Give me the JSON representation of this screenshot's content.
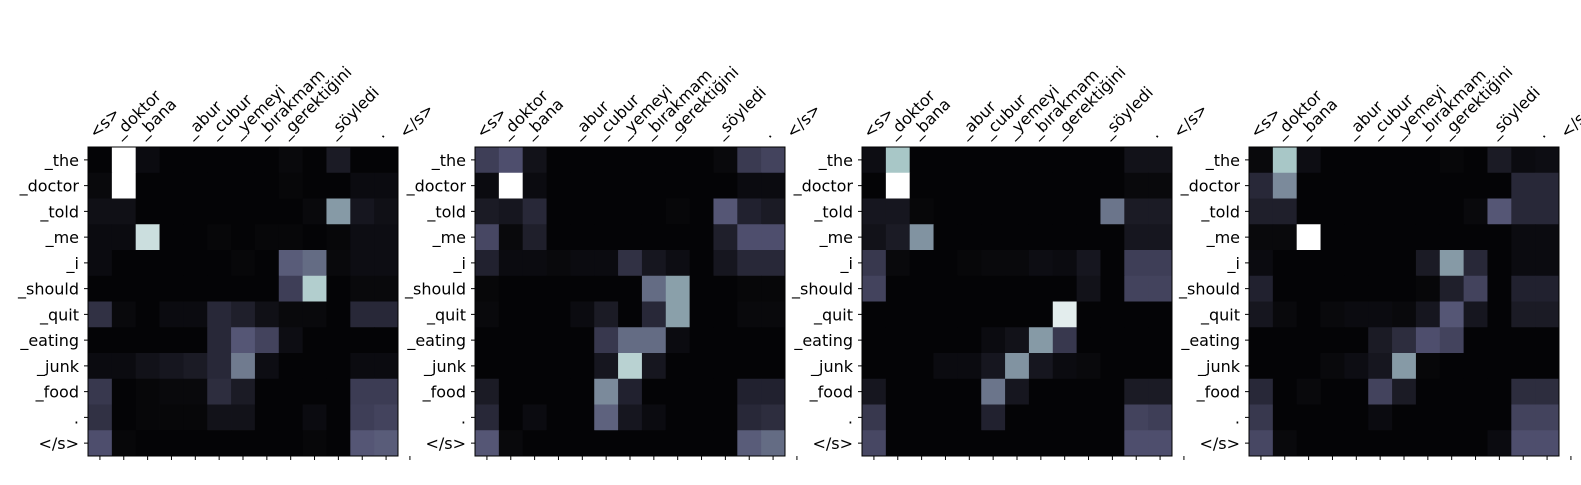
{
  "chart_data": [
    {
      "type": "heatmap",
      "colormap": "bone",
      "x_labels": [
        "<s>",
        "_doktor",
        "_bana",
        "_abur",
        "_cubur",
        "_yemeyi",
        "_bırakmam",
        "_gerektiğini",
        "_söyledi",
        ".",
        "</s>"
      ],
      "x_tokens": [
        "<s>",
        "_doktor",
        "_bana",
        "",
        "_abur",
        "_cubur",
        "_yemeyi",
        "_bırakmam",
        "_gerektiğini",
        "",
        "_söyledi",
        "",
        ".",
        "</s>"
      ],
      "y_labels": [
        "_the",
        "_doctor",
        "_told",
        "_me",
        "_i",
        "_should",
        "_quit",
        "_eating",
        "_junk",
        "_food",
        ".",
        "</s>"
      ],
      "values": [
        [
          0.02,
          1.0,
          0.05,
          0.02,
          0.02,
          0.02,
          0.02,
          0.02,
          0.04,
          0.02,
          0.12,
          0.02,
          0.02
        ],
        [
          0.04,
          1.0,
          0.02,
          0.02,
          0.02,
          0.02,
          0.02,
          0.02,
          0.03,
          0.02,
          0.02,
          0.05,
          0.05
        ],
        [
          0.07,
          0.07,
          0.02,
          0.02,
          0.02,
          0.02,
          0.02,
          0.02,
          0.02,
          0.04,
          0.6,
          0.1,
          0.07
        ],
        [
          0.05,
          0.05,
          0.85,
          0.02,
          0.02,
          0.03,
          0.02,
          0.03,
          0.03,
          0.02,
          0.03,
          0.06,
          0.06
        ],
        [
          0.05,
          0.02,
          0.02,
          0.02,
          0.02,
          0.02,
          0.03,
          0.02,
          0.4,
          0.45,
          0.04,
          0.06,
          0.06
        ],
        [
          0.02,
          0.02,
          0.02,
          0.02,
          0.02,
          0.02,
          0.02,
          0.02,
          0.28,
          0.78,
          0.02,
          0.04,
          0.04
        ],
        [
          0.22,
          0.04,
          0.02,
          0.05,
          0.05,
          0.18,
          0.14,
          0.07,
          0.04,
          0.04,
          0.02,
          0.18,
          0.18
        ],
        [
          0.02,
          0.02,
          0.02,
          0.02,
          0.02,
          0.18,
          0.38,
          0.3,
          0.06,
          0.02,
          0.02,
          0.02,
          0.02
        ],
        [
          0.05,
          0.05,
          0.08,
          0.1,
          0.12,
          0.18,
          0.5,
          0.06,
          0.02,
          0.02,
          0.02,
          0.05,
          0.05
        ],
        [
          0.25,
          0.02,
          0.03,
          0.04,
          0.04,
          0.2,
          0.12,
          0.02,
          0.02,
          0.02,
          0.02,
          0.27,
          0.27
        ],
        [
          0.22,
          0.02,
          0.03,
          0.03,
          0.03,
          0.08,
          0.08,
          0.02,
          0.02,
          0.05,
          0.02,
          0.28,
          0.3
        ],
        [
          0.35,
          0.03,
          0.02,
          0.02,
          0.02,
          0.02,
          0.02,
          0.02,
          0.02,
          0.03,
          0.02,
          0.38,
          0.4
        ]
      ]
    },
    {
      "type": "heatmap",
      "colormap": "bone",
      "x_labels": [
        "<s>",
        "_doktor",
        "_bana",
        "_abur",
        "_cubur",
        "_yemeyi",
        "_bırakmam",
        "_gerektiğini",
        "_söyledi",
        ".",
        "</s>"
      ],
      "x_tokens": [
        "<s>",
        "_doktor",
        "_bana",
        "",
        "_abur",
        "_cubur",
        "_yemeyi",
        "_bırakmam",
        "_gerektiğini",
        "",
        "_söyledi",
        "",
        ".",
        "</s>"
      ],
      "y_labels": [
        "_the",
        "_doctor",
        "_told",
        "_me",
        "_i",
        "_should",
        "_quit",
        "_eating",
        "_junk",
        "_food",
        ".",
        "</s>"
      ],
      "values": [
        [
          0.28,
          0.35,
          0.08,
          0.02,
          0.02,
          0.02,
          0.02,
          0.02,
          0.02,
          0.02,
          0.04,
          0.26,
          0.3
        ],
        [
          0.05,
          1.0,
          0.05,
          0.02,
          0.02,
          0.02,
          0.02,
          0.02,
          0.02,
          0.02,
          0.02,
          0.05,
          0.05
        ],
        [
          0.12,
          0.1,
          0.18,
          0.02,
          0.02,
          0.02,
          0.02,
          0.02,
          0.03,
          0.02,
          0.38,
          0.15,
          0.12
        ],
        [
          0.32,
          0.04,
          0.14,
          0.02,
          0.02,
          0.02,
          0.02,
          0.02,
          0.02,
          0.02,
          0.14,
          0.35,
          0.35
        ],
        [
          0.15,
          0.05,
          0.05,
          0.04,
          0.05,
          0.05,
          0.22,
          0.1,
          0.06,
          0.02,
          0.1,
          0.18,
          0.18
        ],
        [
          0.03,
          0.02,
          0.02,
          0.02,
          0.02,
          0.02,
          0.02,
          0.45,
          0.62,
          0.02,
          0.02,
          0.03,
          0.03
        ],
        [
          0.04,
          0.02,
          0.02,
          0.02,
          0.05,
          0.12,
          0.02,
          0.18,
          0.62,
          0.02,
          0.02,
          0.04,
          0.04
        ],
        [
          0.02,
          0.02,
          0.02,
          0.02,
          0.02,
          0.25,
          0.45,
          0.45,
          0.05,
          0.02,
          0.02,
          0.02,
          0.02
        ],
        [
          0.02,
          0.02,
          0.02,
          0.02,
          0.02,
          0.1,
          0.8,
          0.1,
          0.02,
          0.02,
          0.02,
          0.02,
          0.02
        ],
        [
          0.12,
          0.02,
          0.02,
          0.02,
          0.02,
          0.55,
          0.15,
          0.02,
          0.02,
          0.02,
          0.02,
          0.15,
          0.15
        ],
        [
          0.18,
          0.02,
          0.05,
          0.02,
          0.02,
          0.42,
          0.1,
          0.05,
          0.02,
          0.02,
          0.02,
          0.18,
          0.2
        ],
        [
          0.38,
          0.04,
          0.02,
          0.02,
          0.02,
          0.02,
          0.02,
          0.02,
          0.02,
          0.02,
          0.02,
          0.4,
          0.45
        ]
      ]
    },
    {
      "type": "heatmap",
      "colormap": "bone",
      "x_labels": [
        "<s>",
        "_doktor",
        "_bana",
        "_abur",
        "_cubur",
        "_yemeyi",
        "_bırakmam",
        "_gerektiğini",
        "_söyledi",
        ".",
        "</s>"
      ],
      "x_tokens": [
        "<s>",
        "_doktor",
        "_bana",
        "",
        "_abur",
        "_cubur",
        "_yemeyi",
        "_bırakmam",
        "_gerektiğini",
        "",
        "_söyledi",
        "",
        ".",
        "</s>"
      ],
      "y_labels": [
        "_the",
        "_doctor",
        "_told",
        "_me",
        "_i",
        "_should",
        "_quit",
        "_eating",
        "_junk",
        "_food",
        ".",
        "</s>"
      ],
      "values": [
        [
          0.06,
          0.75,
          0.02,
          0.02,
          0.02,
          0.02,
          0.02,
          0.02,
          0.02,
          0.02,
          0.02,
          0.08,
          0.08
        ],
        [
          0.02,
          1.0,
          0.02,
          0.02,
          0.02,
          0.02,
          0.02,
          0.02,
          0.02,
          0.02,
          0.02,
          0.04,
          0.04
        ],
        [
          0.1,
          0.1,
          0.03,
          0.02,
          0.02,
          0.02,
          0.02,
          0.02,
          0.02,
          0.02,
          0.48,
          0.12,
          0.12
        ],
        [
          0.08,
          0.12,
          0.58,
          0.02,
          0.02,
          0.02,
          0.02,
          0.02,
          0.02,
          0.02,
          0.02,
          0.1,
          0.1
        ],
        [
          0.25,
          0.04,
          0.02,
          0.02,
          0.03,
          0.04,
          0.04,
          0.06,
          0.05,
          0.1,
          0.02,
          0.28,
          0.28
        ],
        [
          0.3,
          0.02,
          0.02,
          0.02,
          0.02,
          0.02,
          0.02,
          0.02,
          0.02,
          0.08,
          0.02,
          0.3,
          0.3
        ],
        [
          0.02,
          0.02,
          0.02,
          0.02,
          0.02,
          0.02,
          0.02,
          0.02,
          0.92,
          0.02,
          0.02,
          0.02,
          0.02
        ],
        [
          0.02,
          0.02,
          0.02,
          0.02,
          0.02,
          0.05,
          0.08,
          0.6,
          0.25,
          0.02,
          0.02,
          0.02,
          0.02
        ],
        [
          0.02,
          0.02,
          0.02,
          0.05,
          0.05,
          0.1,
          0.58,
          0.1,
          0.05,
          0.04,
          0.02,
          0.02,
          0.02
        ],
        [
          0.1,
          0.02,
          0.02,
          0.02,
          0.02,
          0.48,
          0.1,
          0.02,
          0.02,
          0.02,
          0.02,
          0.12,
          0.12
        ],
        [
          0.25,
          0.02,
          0.02,
          0.02,
          0.02,
          0.15,
          0.02,
          0.02,
          0.02,
          0.02,
          0.02,
          0.3,
          0.28
        ],
        [
          0.32,
          0.02,
          0.02,
          0.02,
          0.02,
          0.02,
          0.02,
          0.02,
          0.02,
          0.02,
          0.02,
          0.35,
          0.35
        ]
      ]
    },
    {
      "type": "heatmap",
      "colormap": "bone",
      "x_labels": [
        "<s>",
        "_doktor",
        "_bana",
        "_abur",
        "_cubur",
        "_yemeyi",
        "_bırakmam",
        "_gerektiğini",
        "_söyledi",
        ".",
        "</s>"
      ],
      "x_tokens": [
        "<s>",
        "_doktor",
        "_bana",
        "",
        "_abur",
        "_cubur",
        "_yemeyi",
        "_bırakmam",
        "_gerektiğini",
        "",
        "_söyledi",
        "",
        ".",
        "</s>"
      ],
      "y_labels": [
        "_the",
        "_doctor",
        "_told",
        "_me",
        "_i",
        "_should",
        "_quit",
        "_eating",
        "_junk",
        "_food",
        ".",
        "</s>"
      ],
      "values": [
        [
          0.04,
          0.75,
          0.06,
          0.02,
          0.02,
          0.02,
          0.02,
          0.02,
          0.03,
          0.02,
          0.12,
          0.05,
          0.06
        ],
        [
          0.18,
          0.55,
          0.02,
          0.02,
          0.02,
          0.02,
          0.02,
          0.02,
          0.02,
          0.02,
          0.02,
          0.18,
          0.18
        ],
        [
          0.14,
          0.14,
          0.02,
          0.02,
          0.02,
          0.02,
          0.02,
          0.02,
          0.02,
          0.04,
          0.38,
          0.18,
          0.18
        ],
        [
          0.04,
          0.04,
          1.0,
          0.02,
          0.02,
          0.02,
          0.02,
          0.02,
          0.02,
          0.02,
          0.02,
          0.05,
          0.05
        ],
        [
          0.05,
          0.02,
          0.02,
          0.02,
          0.02,
          0.02,
          0.02,
          0.12,
          0.6,
          0.18,
          0.02,
          0.05,
          0.05
        ],
        [
          0.15,
          0.02,
          0.02,
          0.02,
          0.02,
          0.02,
          0.02,
          0.03,
          0.14,
          0.3,
          0.02,
          0.15,
          0.15
        ],
        [
          0.1,
          0.04,
          0.02,
          0.04,
          0.05,
          0.05,
          0.04,
          0.1,
          0.38,
          0.1,
          0.02,
          0.12,
          0.12
        ],
        [
          0.02,
          0.02,
          0.02,
          0.02,
          0.02,
          0.12,
          0.2,
          0.35,
          0.3,
          0.02,
          0.02,
          0.02,
          0.02
        ],
        [
          0.02,
          0.02,
          0.02,
          0.04,
          0.06,
          0.1,
          0.6,
          0.03,
          0.02,
          0.02,
          0.02,
          0.02,
          0.02
        ],
        [
          0.18,
          0.02,
          0.04,
          0.02,
          0.02,
          0.3,
          0.12,
          0.02,
          0.02,
          0.02,
          0.02,
          0.2,
          0.2
        ],
        [
          0.25,
          0.02,
          0.02,
          0.02,
          0.02,
          0.05,
          0.02,
          0.02,
          0.02,
          0.02,
          0.02,
          0.3,
          0.3
        ],
        [
          0.32,
          0.04,
          0.02,
          0.02,
          0.02,
          0.02,
          0.02,
          0.02,
          0.02,
          0.02,
          0.05,
          0.35,
          0.35
        ]
      ]
    }
  ]
}
